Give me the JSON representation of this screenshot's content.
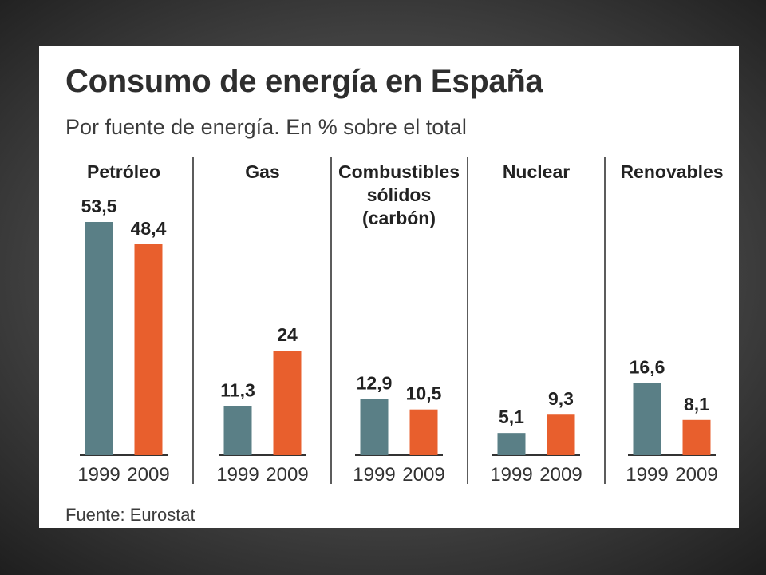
{
  "header": {
    "title": "Consumo de energía en España",
    "subtitle": "Por fuente de energía. En % sobre el total"
  },
  "footer": {
    "source": "Fuente: Eurostat"
  },
  "colors": {
    "series_1999": "#5a7f86",
    "series_2009": "#e85f2d",
    "axis": "#333333"
  },
  "chart_data": {
    "type": "bar",
    "title": "Consumo de energía en España",
    "subtitle": "Por fuente de energía. En % sobre el total",
    "categories": [
      [
        "Petróleo"
      ],
      [
        "Gas"
      ],
      [
        "Combustibles",
        "sólidos",
        "(carbón)"
      ],
      [
        "Nuclear"
      ],
      [
        "Renovables"
      ]
    ],
    "x": [
      "1999",
      "2009"
    ],
    "series": [
      {
        "name": "1999",
        "values": [
          53.5,
          11.3,
          12.9,
          5.1,
          16.6
        ],
        "labels": [
          "53,5",
          "11,3",
          "12,9",
          "5,1",
          "16,6"
        ]
      },
      {
        "name": "2009",
        "values": [
          48.4,
          24,
          10.5,
          9.3,
          8.1
        ],
        "labels": [
          "48,4",
          "24",
          "10,5",
          "9,3",
          "8,1"
        ]
      }
    ],
    "ylim": [
      0,
      53.5
    ],
    "grid": false,
    "legend": "none"
  }
}
